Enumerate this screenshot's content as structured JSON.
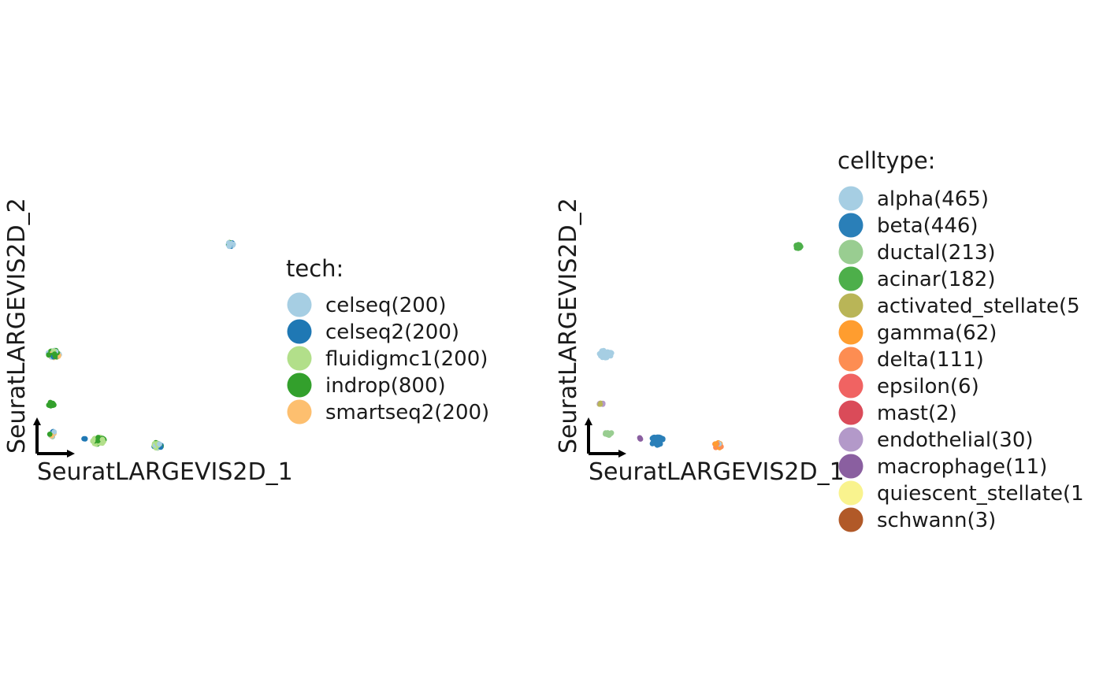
{
  "chart_data": [
    {
      "type": "scatter",
      "xlabel": "SeuratLARGEVIS2D_1",
      "ylabel": "SeuratLARGEVIS2D_2",
      "legend_title": "tech:",
      "legend_placement": "right",
      "grid": false,
      "series": [
        {
          "name": "celseq(200)",
          "color": "#A6CEE3"
        },
        {
          "name": "celseq2(200)",
          "color": "#1F78B4"
        },
        {
          "name": "fluidigmc1(200)",
          "color": "#B2DF8A"
        },
        {
          "name": "indrop(800)",
          "color": "#33A02C"
        },
        {
          "name": "smartseq2(200)",
          "color": "#FDBF6F"
        }
      ],
      "clusters": [
        {
          "x": 0.07,
          "y": 0.45,
          "n": 45,
          "spread": 0.022,
          "colors": [
            "#33A02C",
            "#B2DF8A",
            "#FDBF6F",
            "#1F78B4",
            "#A6CEE3"
          ]
        },
        {
          "x": 0.06,
          "y": 0.23,
          "n": 10,
          "spread": 0.012,
          "colors": [
            "#33A02C"
          ]
        },
        {
          "x": 0.07,
          "y": 0.1,
          "n": 14,
          "spread": 0.016,
          "colors": [
            "#1F78B4",
            "#A6CEE3",
            "#FDBF6F",
            "#33A02C"
          ]
        },
        {
          "x": 0.2,
          "y": 0.08,
          "n": 3,
          "spread": 0.004,
          "colors": [
            "#1F78B4"
          ]
        },
        {
          "x": 0.26,
          "y": 0.07,
          "n": 38,
          "spread": 0.022,
          "colors": [
            "#33A02C",
            "#B2DF8A"
          ]
        },
        {
          "x": 0.51,
          "y": 0.05,
          "n": 20,
          "spread": 0.016,
          "colors": [
            "#33A02C",
            "#A6CEE3",
            "#1F78B4",
            "#B2DF8A"
          ]
        },
        {
          "x": 0.82,
          "y": 0.93,
          "n": 16,
          "spread": 0.012,
          "colors": [
            "#33A02C",
            "#1F78B4",
            "#A6CEE3"
          ]
        }
      ]
    },
    {
      "type": "scatter",
      "xlabel": "SeuratLARGEVIS2D_1",
      "ylabel": "SeuratLARGEVIS2D_2",
      "legend_title": "celltype:",
      "legend_placement": "right",
      "grid": false,
      "series": [
        {
          "name": "alpha(465)",
          "color": "#A6CEE3"
        },
        {
          "name": "beta(446)",
          "color": "#2A7FB8"
        },
        {
          "name": "ductal(213)",
          "color": "#99CD91"
        },
        {
          "name": "acinar(182)",
          "color": "#4DAF4A"
        },
        {
          "name": "activated_stellate(5",
          "color": "#B9B557"
        },
        {
          "name": "gamma(62)",
          "color": "#FF9D2F"
        },
        {
          "name": "delta(111)",
          "color": "#FD8D52"
        },
        {
          "name": "epsilon(6)",
          "color": "#F06362"
        },
        {
          "name": "mast(2)",
          "color": "#DA4B59"
        },
        {
          "name": "endothelial(30)",
          "color": "#B399C9"
        },
        {
          "name": "macrophage(11)",
          "color": "#8A5FA0"
        },
        {
          "name": "quiescent_stellate(1",
          "color": "#F9F38E"
        },
        {
          "name": "schwann(3)",
          "color": "#B15928"
        }
      ],
      "clusters": [
        {
          "x": 0.07,
          "y": 0.45,
          "n": 45,
          "spread": 0.022,
          "colors": [
            "#A6CEE3"
          ]
        },
        {
          "x": 0.05,
          "y": 0.23,
          "n": 8,
          "spread": 0.01,
          "colors": [
            "#B9B557",
            "#B399C9",
            "#F9F38E"
          ]
        },
        {
          "x": 0.08,
          "y": 0.1,
          "n": 12,
          "spread": 0.014,
          "colors": [
            "#99CD91"
          ]
        },
        {
          "x": 0.21,
          "y": 0.08,
          "n": 3,
          "spread": 0.004,
          "colors": [
            "#8A5FA0"
          ]
        },
        {
          "x": 0.28,
          "y": 0.07,
          "n": 45,
          "spread": 0.024,
          "colors": [
            "#2A7FB8"
          ]
        },
        {
          "x": 0.53,
          "y": 0.05,
          "n": 18,
          "spread": 0.015,
          "colors": [
            "#FD8D52",
            "#FF9D2F",
            "#A6CEE3"
          ]
        },
        {
          "x": 0.86,
          "y": 0.92,
          "n": 16,
          "spread": 0.012,
          "colors": [
            "#4DAF4A"
          ]
        }
      ]
    }
  ]
}
